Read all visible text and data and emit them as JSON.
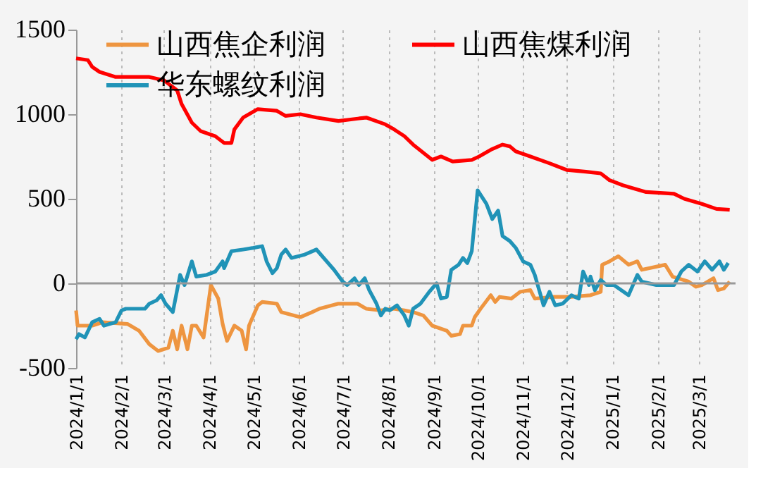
{
  "chart_data": {
    "type": "line",
    "xlim": [
      "2024-01-01",
      "2025-03-26"
    ],
    "xticks": [
      {
        "value": "2024-01-01",
        "label": "2024/1/1"
      },
      {
        "value": "2024-02-01",
        "label": "2024/2/1"
      },
      {
        "value": "2024-03-01",
        "label": "2024/3/1"
      },
      {
        "value": "2024-04-01",
        "label": "2024/4/1"
      },
      {
        "value": "2024-05-01",
        "label": "2024/5/1"
      },
      {
        "value": "2024-06-01",
        "label": "2024/6/1"
      },
      {
        "value": "2024-07-01",
        "label": "2024/7/1"
      },
      {
        "value": "2024-08-01",
        "label": "2024/8/1"
      },
      {
        "value": "2024-09-01",
        "label": "2024/9/1"
      },
      {
        "value": "2024-10-01",
        "label": "2024/10/1"
      },
      {
        "value": "2024-11-01",
        "label": "2024/11/1"
      },
      {
        "value": "2024-12-01",
        "label": "2024/12/1"
      },
      {
        "value": "2025-01-01",
        "label": "2025/1/1"
      },
      {
        "value": "2025-02-01",
        "label": "2025/2/1"
      },
      {
        "value": "2025-03-01",
        "label": "2025/3/1"
      }
    ],
    "ylim": [
      -500,
      1500
    ],
    "yticks": [
      -500,
      0,
      500,
      1000,
      1500
    ],
    "grid": "x",
    "legend": "top",
    "line_style": "solid",
    "ref_lines": [
      {
        "axis": "y",
        "value": 0,
        "color": "#999999"
      }
    ],
    "series": [
      {
        "name": "山西焦企利润",
        "color": "#ee9540",
        "x": [
          "2024-01-01",
          "2024-01-02",
          "2024-01-12",
          "2024-01-19",
          "2024-02-05",
          "2024-02-13",
          "2024-02-20",
          "2024-02-26",
          "2024-03-04",
          "2024-03-07",
          "2024-03-10",
          "2024-03-13",
          "2024-03-17",
          "2024-03-20",
          "2024-03-23",
          "2024-03-28",
          "2024-04-02",
          "2024-04-07",
          "2024-04-10",
          "2024-04-13",
          "2024-04-18",
          "2024-04-23",
          "2024-04-26",
          "2024-04-28",
          "2024-05-04",
          "2024-05-07",
          "2024-05-17",
          "2024-05-20",
          "2024-06-02",
          "2024-06-10",
          "2024-06-15",
          "2024-06-28",
          "2024-07-11",
          "2024-07-17",
          "2024-07-27",
          "2024-08-05",
          "2024-08-12",
          "2024-08-18",
          "2024-08-25",
          "2024-08-31",
          "2024-09-10",
          "2024-09-13",
          "2024-09-19",
          "2024-09-21",
          "2024-09-27",
          "2024-09-29",
          "2024-10-03",
          "2024-10-10",
          "2024-10-13",
          "2024-10-16",
          "2024-10-24",
          "2024-10-30",
          "2024-11-06",
          "2024-11-09",
          "2024-11-22",
          "2024-12-04",
          "2024-12-17",
          "2024-12-24",
          "2024-12-25",
          "2024-12-30",
          "2025-01-05",
          "2025-01-12",
          "2025-01-18",
          "2025-01-21",
          "2025-02-06",
          "2025-02-11",
          "2025-02-22",
          "2025-02-27",
          "2025-03-03",
          "2025-03-11",
          "2025-03-14",
          "2025-03-18",
          "2025-03-22"
        ],
        "values": [
          -160,
          -250,
          -250,
          -230,
          -240,
          -280,
          -360,
          -400,
          -380,
          -280,
          -390,
          -250,
          -390,
          -250,
          -250,
          -320,
          -10,
          -90,
          -240,
          -340,
          -250,
          -280,
          -390,
          -250,
          -130,
          -110,
          -120,
          -170,
          -200,
          -170,
          -150,
          -120,
          -120,
          -150,
          -160,
          -150,
          -160,
          -170,
          -190,
          -250,
          -280,
          -310,
          -300,
          -250,
          -250,
          -200,
          -150,
          -70,
          -110,
          -80,
          -90,
          -50,
          -40,
          -90,
          -80,
          -80,
          -70,
          -50,
          110,
          130,
          160,
          110,
          130,
          80,
          110,
          40,
          10,
          -20,
          -10,
          30,
          -40,
          -30,
          10
        ]
      },
      {
        "name": "山西焦煤利润",
        "color": "#ff0000",
        "x": [
          "2024-01-01",
          "2024-01-09",
          "2024-01-12",
          "2024-01-17",
          "2024-01-28",
          "2024-02-20",
          "2024-03-01",
          "2024-03-10",
          "2024-03-13",
          "2024-03-20",
          "2024-03-26",
          "2024-04-05",
          "2024-04-11",
          "2024-04-16",
          "2024-04-18",
          "2024-04-24",
          "2024-05-04",
          "2024-05-17",
          "2024-05-23",
          "2024-06-02",
          "2024-06-13",
          "2024-06-28",
          "2024-07-17",
          "2024-07-30",
          "2024-08-05",
          "2024-08-12",
          "2024-08-18",
          "2024-08-31",
          "2024-09-06",
          "2024-09-14",
          "2024-09-27",
          "2024-10-02",
          "2024-10-10",
          "2024-10-18",
          "2024-10-23",
          "2024-10-27",
          "2024-11-06",
          "2024-11-19",
          "2024-12-01",
          "2024-12-14",
          "2024-12-24",
          "2024-12-30",
          "2025-01-08",
          "2025-01-12",
          "2025-01-24",
          "2025-02-12",
          "2025-02-19",
          "2025-03-03",
          "2025-03-13",
          "2025-03-22"
        ],
        "values": [
          1330,
          1320,
          1280,
          1250,
          1220,
          1220,
          1200,
          1140,
          1060,
          950,
          900,
          870,
          830,
          830,
          910,
          980,
          1030,
          1020,
          990,
          1000,
          980,
          960,
          980,
          940,
          910,
          870,
          820,
          730,
          750,
          720,
          730,
          750,
          790,
          820,
          810,
          780,
          750,
          710,
          670,
          660,
          650,
          610,
          580,
          570,
          540,
          530,
          500,
          470,
          440,
          435
        ]
      },
      {
        "name": "华东螺纹利润",
        "color": "#2093b7",
        "x": [
          "2024-01-01",
          "2024-01-03",
          "2024-01-07",
          "2024-01-12",
          "2024-01-17",
          "2024-01-20",
          "2024-01-24",
          "2024-01-28",
          "2024-02-01",
          "2024-02-04",
          "2024-02-17",
          "2024-02-20",
          "2024-02-25",
          "2024-02-28",
          "2024-03-02",
          "2024-03-07",
          "2024-03-12",
          "2024-03-15",
          "2024-03-20",
          "2024-03-23",
          "2024-03-30",
          "2024-04-05",
          "2024-04-10",
          "2024-04-11",
          "2024-04-16",
          "2024-04-24",
          "2024-05-01",
          "2024-05-07",
          "2024-05-10",
          "2024-05-14",
          "2024-05-17",
          "2024-05-20",
          "2024-05-23",
          "2024-05-27",
          "2024-06-05",
          "2024-06-13",
          "2024-06-18",
          "2024-06-25",
          "2024-07-01",
          "2024-07-04",
          "2024-07-09",
          "2024-07-12",
          "2024-07-16",
          "2024-07-19",
          "2024-07-24",
          "2024-07-27",
          "2024-07-30",
          "2024-08-02",
          "2024-08-07",
          "2024-08-12",
          "2024-08-15",
          "2024-08-18",
          "2024-08-23",
          "2024-08-29",
          "2024-09-03",
          "2024-09-06",
          "2024-09-10",
          "2024-09-13",
          "2024-09-18",
          "2024-09-21",
          "2024-09-24",
          "2024-09-27",
          "2024-10-01",
          "2024-10-07",
          "2024-10-11",
          "2024-10-15",
          "2024-10-18",
          "2024-10-23",
          "2024-10-27",
          "2024-11-01",
          "2024-11-06",
          "2024-11-09",
          "2024-11-15",
          "2024-11-19",
          "2024-11-23",
          "2024-11-28",
          "2024-12-04",
          "2024-12-09",
          "2024-12-12",
          "2024-12-16",
          "2024-12-17",
          "2024-12-20",
          "2024-12-24",
          "2024-12-28",
          "2025-01-02",
          "2025-01-12",
          "2025-01-18",
          "2025-01-21",
          "2025-01-31",
          "2025-02-12",
          "2025-02-17",
          "2025-02-22",
          "2025-02-28",
          "2025-03-05",
          "2025-03-10",
          "2025-03-15",
          "2025-03-18",
          "2025-03-21"
        ],
        "values": [
          -330,
          -300,
          -320,
          -230,
          -210,
          -250,
          -240,
          -230,
          -160,
          -150,
          -150,
          -120,
          -100,
          -70,
          -120,
          -170,
          50,
          -10,
          130,
          40,
          50,
          70,
          130,
          90,
          190,
          200,
          210,
          220,
          130,
          60,
          90,
          170,
          200,
          150,
          170,
          200,
          150,
          80,
          10,
          -10,
          30,
          -10,
          30,
          -40,
          -120,
          -190,
          -150,
          -160,
          -130,
          -190,
          -250,
          -150,
          -120,
          -50,
          0,
          -90,
          -80,
          80,
          110,
          150,
          120,
          190,
          550,
          470,
          380,
          430,
          280,
          250,
          210,
          130,
          110,
          50,
          -130,
          -50,
          -130,
          -120,
          -70,
          -90,
          70,
          -10,
          40,
          -40,
          20,
          -10,
          -10,
          -70,
          50,
          10,
          -10,
          -10,
          70,
          110,
          70,
          130,
          80,
          130,
          80,
          120
        ]
      }
    ]
  }
}
